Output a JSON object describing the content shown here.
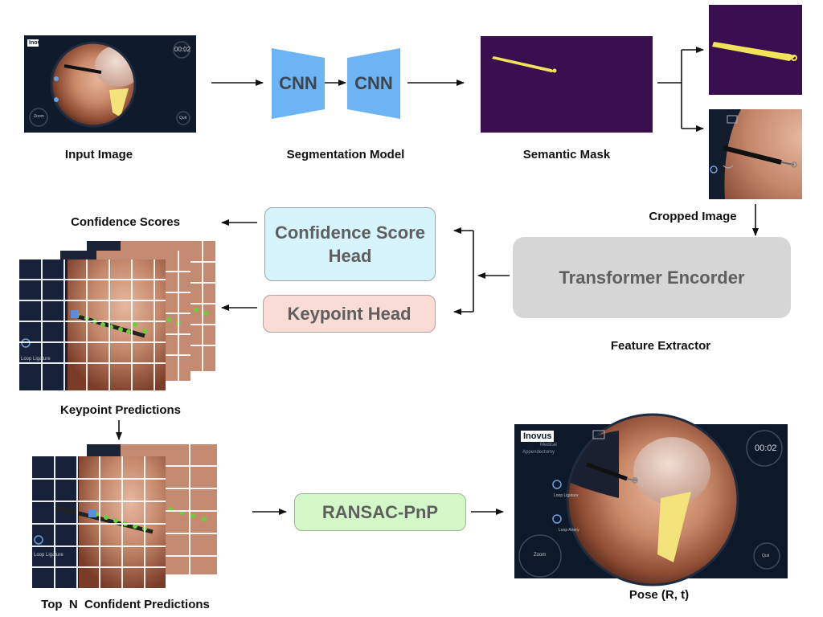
{
  "captions": {
    "input_image": "Input Image",
    "segmentation_model": "Segmentation Model",
    "semantic_mask": "Semantic Mask",
    "cropped_image": "Cropped Image",
    "feature_extractor": "Feature Extractor",
    "confidence_scores": "Confidence Scores",
    "keypoint_predictions": "Keypoint Predictions",
    "top_n": "Top  N  Confident Predictions",
    "pose": "Pose (R, t)"
  },
  "blocks": {
    "cnn_1": "CNN",
    "cnn_2": "CNN",
    "confidence_head_line1": "Confidence Score",
    "confidence_head_line2": "Head",
    "keypoint_head": "Keypoint Head",
    "transformer": "Transformer Encorder",
    "ransac": "RANSAC-PnP"
  },
  "ui": {
    "brand": "Inovus",
    "brand_sub": "Medical",
    "procedure": "Appendectomy",
    "timer": "00:02",
    "zoom": "Zoom",
    "quit": "Quit",
    "loop_ligature": "Loop Ligature",
    "loop_artery": "Loop Artery"
  },
  "colors": {
    "cnn": "#6cb4f3",
    "confidence_head": "#d7f3fb",
    "keypoint_head": "#fadcd7",
    "transformer": "#d6d6d6",
    "ransac": "#d3f7c6",
    "mask_bg": "#3a0f4f",
    "mask_tool": "#f3e35a"
  }
}
